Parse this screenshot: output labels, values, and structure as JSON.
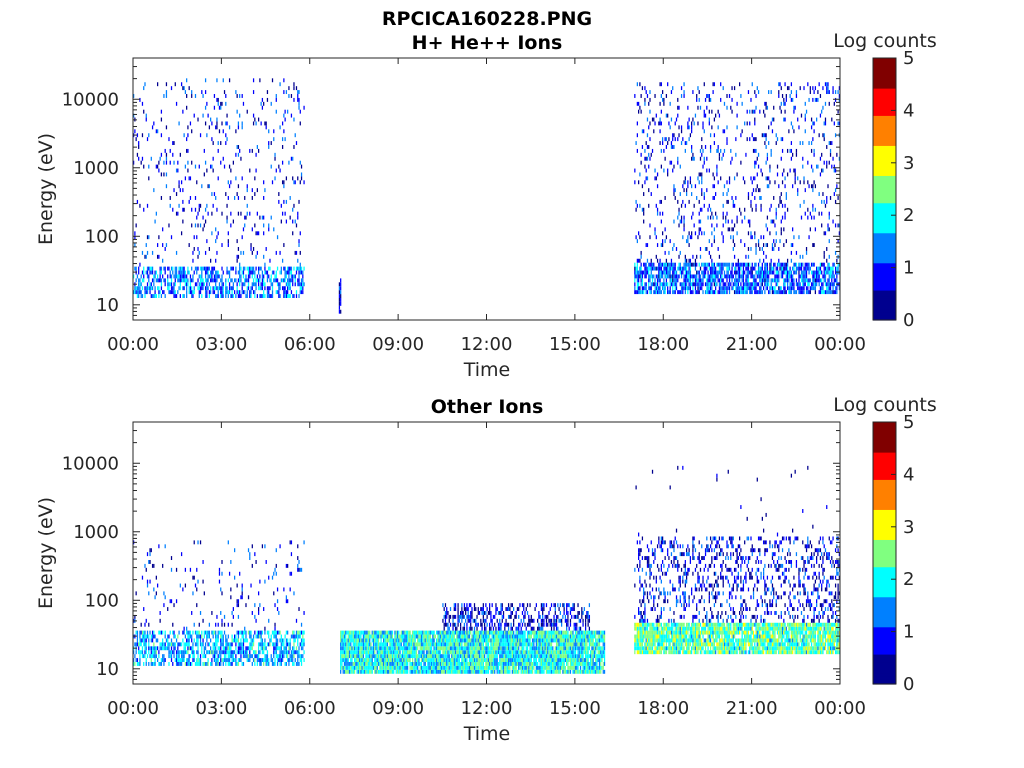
{
  "figure": {
    "title": "RPCICA160228.PNG"
  },
  "colormap": [
    "#00008f",
    "#0000ff",
    "#0080ff",
    "#00ffff",
    "#80ff80",
    "#ffff00",
    "#ff8000",
    "#ff0000",
    "#800000"
  ],
  "chart_data": [
    {
      "type": "heatmap",
      "title": "H+ He++ Ions",
      "xlabel": "Time",
      "ylabel": "Energy (eV)",
      "x_ticks": [
        "00:00",
        "03:00",
        "06:00",
        "09:00",
        "12:00",
        "15:00",
        "18:00",
        "21:00",
        "00:00"
      ],
      "xlim_hours": [
        0,
        24
      ],
      "y_scale": "log",
      "ylim": [
        6,
        40000
      ],
      "y_ticks": [
        "10",
        "100",
        "1000",
        "10000"
      ],
      "y_tick_values": [
        10,
        100,
        1000,
        10000
      ],
      "colorbar": {
        "label": "Log counts",
        "ticks": [
          "0",
          "1",
          "2",
          "3",
          "4",
          "5"
        ],
        "range": [
          0,
          5
        ]
      },
      "regions": [
        {
          "t_start": 0.0,
          "t_end": 5.8,
          "e_min": 12,
          "e_max": 35,
          "density": 0.55,
          "level": 1.3
        },
        {
          "t_start": 0.0,
          "t_end": 5.8,
          "e_min": 35,
          "e_max": 18000,
          "density": 0.07,
          "level": 0.8
        },
        {
          "t_start": 6.95,
          "t_end": 7.05,
          "e_min": 7,
          "e_max": 22,
          "density": 0.9,
          "level": 0.6
        },
        {
          "t_start": 17.0,
          "t_end": 24.0,
          "e_min": 14,
          "e_max": 40,
          "density": 0.75,
          "level": 1.2
        },
        {
          "t_start": 17.0,
          "t_end": 24.0,
          "e_min": 40,
          "e_max": 16000,
          "density": 0.12,
          "level": 0.8
        }
      ]
    },
    {
      "type": "heatmap",
      "title": "Other Ions",
      "xlabel": "Time",
      "ylabel": "Energy (eV)",
      "x_ticks": [
        "00:00",
        "03:00",
        "06:00",
        "09:00",
        "12:00",
        "15:00",
        "18:00",
        "21:00",
        "00:00"
      ],
      "xlim_hours": [
        0,
        24
      ],
      "y_scale": "log",
      "ylim": [
        6,
        40000
      ],
      "y_ticks": [
        "10",
        "100",
        "1000",
        "10000"
      ],
      "y_tick_values": [
        10,
        100,
        1000,
        10000
      ],
      "colorbar": {
        "label": "Log counts",
        "ticks": [
          "0",
          "1",
          "2",
          "3",
          "4",
          "5"
        ],
        "range": [
          0,
          5
        ]
      },
      "regions": [
        {
          "t_start": 0.0,
          "t_end": 5.8,
          "e_min": 10,
          "e_max": 35,
          "density": 0.6,
          "level": 1.6
        },
        {
          "t_start": 0.0,
          "t_end": 5.8,
          "e_min": 35,
          "e_max": 700,
          "density": 0.05,
          "level": 0.8
        },
        {
          "t_start": 7.0,
          "t_end": 16.0,
          "e_min": 8,
          "e_max": 35,
          "density": 0.95,
          "level": 2.0
        },
        {
          "t_start": 10.5,
          "t_end": 15.5,
          "e_min": 35,
          "e_max": 85,
          "density": 0.45,
          "level": 0.7
        },
        {
          "t_start": 17.0,
          "t_end": 24.0,
          "e_min": 15,
          "e_max": 45,
          "density": 0.9,
          "level": 2.3
        },
        {
          "t_start": 17.0,
          "t_end": 24.0,
          "e_min": 45,
          "e_max": 800,
          "density": 0.25,
          "level": 0.7
        },
        {
          "t_start": 17.0,
          "t_end": 24.0,
          "e_min": 800,
          "e_max": 9000,
          "density": 0.01,
          "level": 0.3
        }
      ]
    }
  ]
}
